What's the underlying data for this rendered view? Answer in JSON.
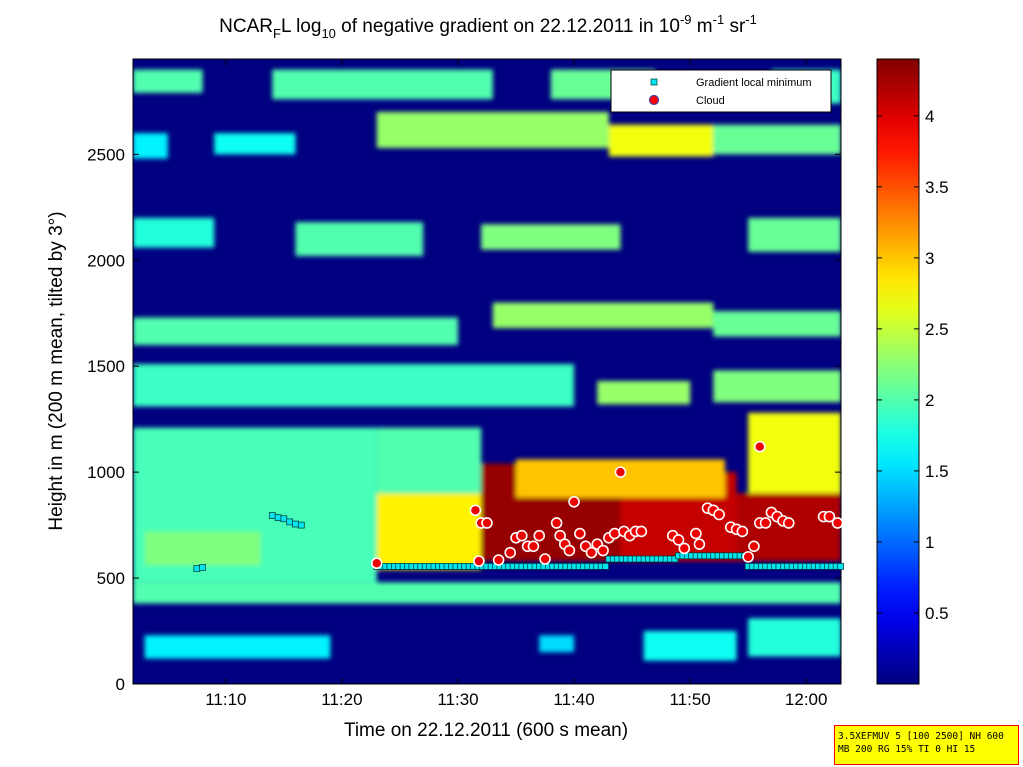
{
  "chart_data": {
    "type": "heatmap",
    "title_parts": [
      "NCAR",
      "F",
      "L log",
      "10",
      " of negative gradient on 22.12.2011 in 10",
      "-9",
      " m",
      "-1",
      " sr",
      "-1"
    ],
    "xlabel": "Time on 22.12.2011 (600 s mean)",
    "ylabel": "Height in m (200 m mean, tilted by 3°)",
    "xlim": [
      "11:02",
      "12:03"
    ],
    "ylim": [
      0,
      2950
    ],
    "xticks": [
      "11:10",
      "11:20",
      "11:30",
      "11:40",
      "11:50",
      "12:00"
    ],
    "yticks": [
      0,
      500,
      1000,
      1500,
      2000,
      2500
    ],
    "colorbar": {
      "range": [
        0,
        4.4
      ],
      "ticks": [
        0.5,
        1,
        1.5,
        2,
        2.5,
        3,
        3.5,
        4
      ],
      "tick_labels": [
        "0.5",
        "1",
        "1.5",
        "2",
        "2.5",
        "3",
        "3.5",
        "4"
      ],
      "colormap": "jet"
    },
    "legend": {
      "placement": "top-right",
      "entries": [
        {
          "label": "Gradient local minimum",
          "marker": "square",
          "color": "#00ffff"
        },
        {
          "label": "Cloud",
          "marker": "circle",
          "color": "#ff0000"
        }
      ]
    },
    "layers": [
      {
        "t0": "11:02",
        "t1": "12:03",
        "h0": 380,
        "h1": 480,
        "v": 2.0
      },
      {
        "t0": "11:02",
        "t1": "11:23",
        "h0": 480,
        "h1": 1210,
        "v": 1.95
      },
      {
        "t0": "11:03",
        "t1": "11:13",
        "h0": 560,
        "h1": 720,
        "v": 2.2
      },
      {
        "t0": "11:23",
        "t1": "11:32",
        "h0": 540,
        "h1": 900,
        "v": 2.8
      },
      {
        "t0": "11:23",
        "t1": "11:32",
        "h0": 900,
        "h1": 1210,
        "v": 2.0
      },
      {
        "t0": "11:32",
        "t1": "11:44",
        "h0": 580,
        "h1": 1040,
        "v": 4.3
      },
      {
        "t0": "11:44",
        "t1": "11:54",
        "h0": 580,
        "h1": 1000,
        "v": 4.1
      },
      {
        "t0": "11:54",
        "t1": "12:03",
        "h0": 580,
        "h1": 900,
        "v": 4.2
      },
      {
        "t0": "11:55",
        "t1": "12:03",
        "h0": 900,
        "h1": 1280,
        "v": 2.7
      },
      {
        "t0": "11:35",
        "t1": "11:53",
        "h0": 880,
        "h1": 1060,
        "v": 3.0
      },
      {
        "t0": "11:02",
        "t1": "11:40",
        "h0": 1310,
        "h1": 1510,
        "v": 1.9
      },
      {
        "t0": "11:42",
        "t1": "11:50",
        "h0": 1320,
        "h1": 1430,
        "v": 2.3
      },
      {
        "t0": "11:52",
        "t1": "12:03",
        "h0": 1330,
        "h1": 1480,
        "v": 2.2
      },
      {
        "t0": "11:02",
        "t1": "11:30",
        "h0": 1600,
        "h1": 1730,
        "v": 2.0
      },
      {
        "t0": "11:33",
        "t1": "11:52",
        "h0": 1680,
        "h1": 1800,
        "v": 2.3
      },
      {
        "t0": "11:52",
        "t1": "12:03",
        "h0": 1640,
        "h1": 1760,
        "v": 2.1
      },
      {
        "t0": "11:02",
        "t1": "11:09",
        "h0": 2060,
        "h1": 2200,
        "v": 1.8
      },
      {
        "t0": "11:16",
        "t1": "11:27",
        "h0": 2020,
        "h1": 2180,
        "v": 2.0
      },
      {
        "t0": "11:32",
        "t1": "11:44",
        "h0": 2050,
        "h1": 2170,
        "v": 2.2
      },
      {
        "t0": "11:55",
        "t1": "12:03",
        "h0": 2040,
        "h1": 2200,
        "v": 2.1
      },
      {
        "t0": "11:02",
        "t1": "11:05",
        "h0": 2480,
        "h1": 2600,
        "v": 1.6
      },
      {
        "t0": "11:09",
        "t1": "11:16",
        "h0": 2500,
        "h1": 2600,
        "v": 1.7
      },
      {
        "t0": "11:23",
        "t1": "11:43",
        "h0": 2530,
        "h1": 2700,
        "v": 2.3
      },
      {
        "t0": "11:43",
        "t1": "11:52",
        "h0": 2490,
        "h1": 2640,
        "v": 2.7
      },
      {
        "t0": "11:52",
        "t1": "12:03",
        "h0": 2500,
        "h1": 2640,
        "v": 2.1
      },
      {
        "t0": "11:02",
        "t1": "11:08",
        "h0": 2790,
        "h1": 2900,
        "v": 2.0
      },
      {
        "t0": "11:14",
        "t1": "11:33",
        "h0": 2760,
        "h1": 2900,
        "v": 2.0
      },
      {
        "t0": "11:38",
        "t1": "11:47",
        "h0": 2760,
        "h1": 2900,
        "v": 2.1
      },
      {
        "t0": "11:57",
        "t1": "12:03",
        "h0": 2740,
        "h1": 2900,
        "v": 1.9
      },
      {
        "t0": "11:03",
        "t1": "11:19",
        "h0": 120,
        "h1": 230,
        "v": 1.6
      },
      {
        "t0": "11:37",
        "t1": "11:40",
        "h0": 150,
        "h1": 230,
        "v": 1.5
      },
      {
        "t0": "11:46",
        "t1": "11:54",
        "h0": 110,
        "h1": 250,
        "v": 1.7
      },
      {
        "t0": "11:55",
        "t1": "12:03",
        "h0": 130,
        "h1": 310,
        "v": 1.8
      }
    ],
    "gradient_local_minimum": [
      {
        "t": "11:07.5",
        "h": 545
      },
      {
        "t": "11:08.0",
        "h": 550
      },
      {
        "t": "11:14.0",
        "h": 795
      },
      {
        "t": "11:14.5",
        "h": 785
      },
      {
        "t": "11:15.0",
        "h": 780
      },
      {
        "t": "11:15.5",
        "h": 765
      },
      {
        "t": "11:16.0",
        "h": 755
      },
      {
        "t": "11:16.5",
        "h": 750
      },
      {
        "run_t0": "11:23",
        "run_t1": "11:43",
        "h": 555
      },
      {
        "run_t0": "11:43",
        "run_t1": "11:49",
        "h": 590
      },
      {
        "run_t0": "11:49",
        "run_t1": "11:55",
        "h": 605
      },
      {
        "run_t0": "11:55",
        "run_t1": "12:03",
        "h": 555
      }
    ],
    "cloud": [
      {
        "t": "11:23.0",
        "h": 570
      },
      {
        "t": "11:31.5",
        "h": 820
      },
      {
        "t": "11:32.0",
        "h": 760
      },
      {
        "t": "11:32.5",
        "h": 760
      },
      {
        "t": "11:31.8",
        "h": 580
      },
      {
        "t": "11:33.5",
        "h": 585
      },
      {
        "t": "11:34.5",
        "h": 620
      },
      {
        "t": "11:35.0",
        "h": 690
      },
      {
        "t": "11:35.5",
        "h": 700
      },
      {
        "t": "11:36.0",
        "h": 650
      },
      {
        "t": "11:36.5",
        "h": 650
      },
      {
        "t": "11:37.0",
        "h": 700
      },
      {
        "t": "11:37.5",
        "h": 590
      },
      {
        "t": "11:38.5",
        "h": 760
      },
      {
        "t": "11:38.8",
        "h": 700
      },
      {
        "t": "11:39.2",
        "h": 660
      },
      {
        "t": "11:39.6",
        "h": 630
      },
      {
        "t": "11:40.0",
        "h": 860
      },
      {
        "t": "11:40.5",
        "h": 710
      },
      {
        "t": "11:41.0",
        "h": 650
      },
      {
        "t": "11:41.5",
        "h": 620
      },
      {
        "t": "11:42.0",
        "h": 660
      },
      {
        "t": "11:42.5",
        "h": 630
      },
      {
        "t": "11:43.0",
        "h": 690
      },
      {
        "t": "11:43.5",
        "h": 710
      },
      {
        "t": "11:44.0",
        "h": 1000
      },
      {
        "t": "11:44.3",
        "h": 720
      },
      {
        "t": "11:44.8",
        "h": 700
      },
      {
        "t": "11:45.3",
        "h": 720
      },
      {
        "t": "11:45.8",
        "h": 720
      },
      {
        "t": "11:48.5",
        "h": 700
      },
      {
        "t": "11:49.0",
        "h": 680
      },
      {
        "t": "11:49.5",
        "h": 640
      },
      {
        "t": "11:50.5",
        "h": 710
      },
      {
        "t": "11:50.8",
        "h": 660
      },
      {
        "t": "11:51.5",
        "h": 830
      },
      {
        "t": "11:52.0",
        "h": 820
      },
      {
        "t": "11:52.5",
        "h": 800
      },
      {
        "t": "11:53.5",
        "h": 740
      },
      {
        "t": "11:54.0",
        "h": 730
      },
      {
        "t": "11:54.5",
        "h": 720
      },
      {
        "t": "11:55.0",
        "h": 600
      },
      {
        "t": "11:55.5",
        "h": 650
      },
      {
        "t": "11:56.0",
        "h": 1120
      },
      {
        "t": "11:56.0",
        "h": 760
      },
      {
        "t": "11:56.5",
        "h": 760
      },
      {
        "t": "11:57.0",
        "h": 810
      },
      {
        "t": "11:57.5",
        "h": 790
      },
      {
        "t": "11:58.0",
        "h": 770
      },
      {
        "t": "11:58.5",
        "h": 760
      },
      {
        "t": "12:01.5",
        "h": 790
      },
      {
        "t": "12:02.0",
        "h": 790
      },
      {
        "t": "12:02.7",
        "h": 760
      }
    ]
  },
  "stamp": {
    "line1": "3.5XEFMUV 5 [100 2500] NH 600",
    "line2": "MB 200 RG 15% TI 0 HI 15"
  }
}
